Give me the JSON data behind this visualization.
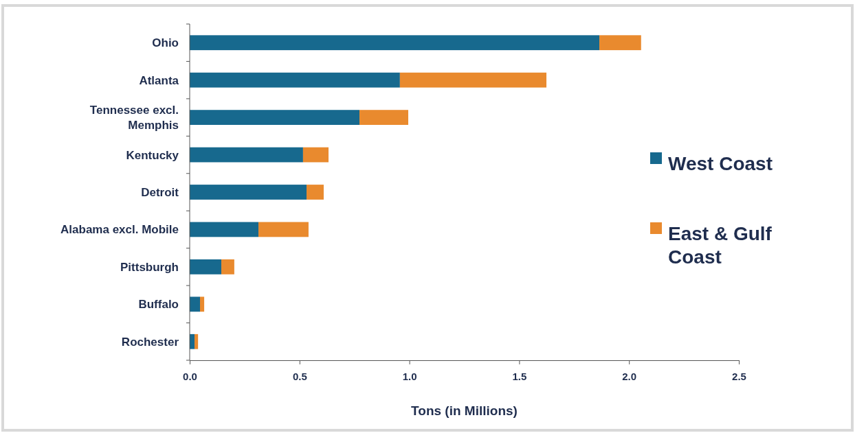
{
  "chart_data": {
    "type": "bar",
    "orientation": "horizontal",
    "stacked": true,
    "categories": [
      "Ohio",
      "Atlanta",
      "Tennessee excl. Memphis",
      "Kentucky",
      "Detroit",
      "Alabama excl. Mobile",
      "Pittsburgh",
      "Buffalo",
      "Rochester"
    ],
    "series": [
      {
        "name": "West Coast",
        "color": "#17698e",
        "values": [
          1.865,
          0.957,
          0.773,
          0.516,
          0.532,
          0.313,
          0.144,
          0.047,
          0.022
        ]
      },
      {
        "name": "East & Gulf Coast",
        "color": "#e98a2e",
        "values": [
          0.19,
          0.667,
          0.222,
          0.116,
          0.078,
          0.228,
          0.059,
          0.019,
          0.016
        ]
      }
    ],
    "xlim": [
      0,
      2.5
    ],
    "xticks": [
      {
        "value": 0,
        "label": "0.0"
      },
      {
        "value": 0.5,
        "label": "0.5"
      },
      {
        "value": 1,
        "label": "1.0"
      },
      {
        "value": 1.5,
        "label": "1.5"
      },
      {
        "value": 2,
        "label": "2.0"
      },
      {
        "value": 2.5,
        "label": "2.5"
      }
    ],
    "xlabel": "Tons (in Millions)",
    "legend": "right"
  }
}
